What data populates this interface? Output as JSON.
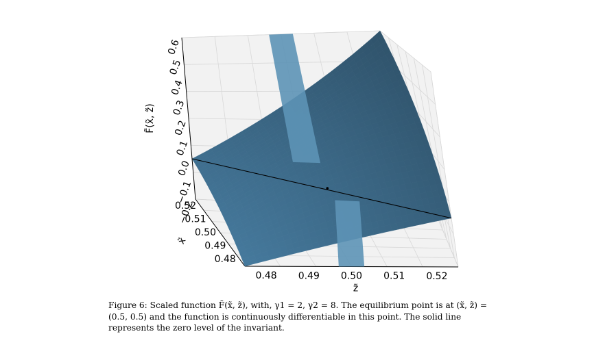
{
  "chart_data": {
    "type": "surface",
    "x_axis_label": "x̃",
    "y_axis_label": "z̃",
    "z_axis_label": "F̃(x̃, z̃)",
    "x_ticks": [
      "0.48",
      "0.49",
      "0.50",
      "0.51",
      "0.52"
    ],
    "y_ticks": [
      "0.48",
      "0.49",
      "0.50",
      "0.51",
      "0.52"
    ],
    "z_ticks": [
      "−0.2",
      "−0.1",
      "0.0",
      "0.1",
      "0.2",
      "0.3",
      "0.4",
      "0.5",
      "0.6"
    ],
    "xlim": [
      0.475,
      0.525
    ],
    "ylim": [
      0.475,
      0.525
    ],
    "zlim": [
      -0.2,
      0.6
    ],
    "surface_color": "#3f6e8e",
    "corner_values": [
      {
        "x": 0.475,
        "z": 0.475,
        "F": -0.2
      },
      {
        "x": 0.525,
        "z": 0.475,
        "F": 0.0
      },
      {
        "x": 0.525,
        "z": 0.525,
        "F": 0.6
      },
      {
        "x": 0.475,
        "z": 0.525,
        "F": 0.0
      }
    ],
    "zero_level_line": [
      {
        "x": 0.525,
        "z": 0.475
      },
      {
        "x": 0.475,
        "z": 0.525
      }
    ],
    "equilibrium_point": {
      "x": 0.5,
      "z": 0.5,
      "F": 0.0
    },
    "grid": true
  },
  "caption": {
    "text": "Figure 6: Scaled function F̃(x̃, z̃), with, γ1 = 2, γ2 = 8. The equilibrium point is at (x̃, z̃) = (0.5, 0.5) and the function is continuously differentiable in this point. The solid line represents the zero level of the invariant."
  }
}
